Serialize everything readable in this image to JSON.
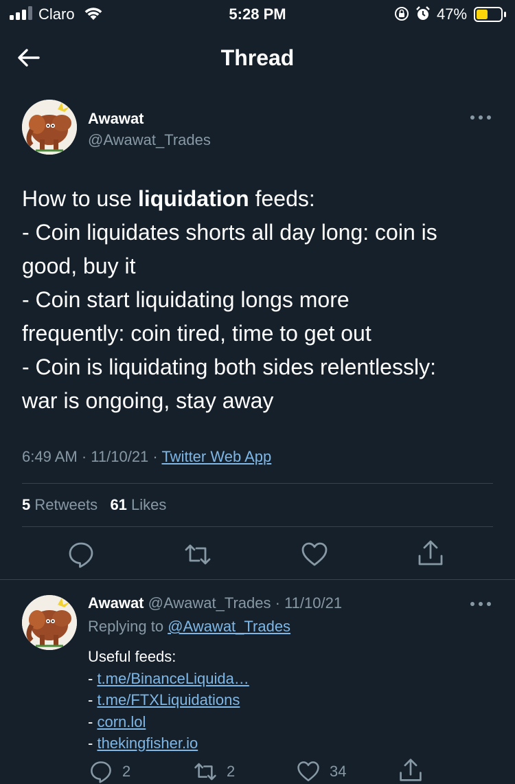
{
  "status_bar": {
    "carrier": "Claro",
    "time": "5:28 PM",
    "battery_percent": "47%",
    "battery_color": "#ffd60a"
  },
  "header": {
    "title": "Thread"
  },
  "main_tweet": {
    "display_name": "Awawat",
    "handle": "@Awawat_Trades",
    "text_lines": [
      {
        "before": "How to use ",
        "bold": "liquidation",
        "after": " feeds:"
      },
      {
        "text": "- Coin liquidates shorts all day long: coin is"
      },
      {
        "text": "good, buy it"
      },
      {
        "text": "- Coin start liquidating longs more"
      },
      {
        "text": "frequently: coin tired, time to get out"
      },
      {
        "text": "- Coin is liquidating both sides relentlessly:"
      },
      {
        "text": "war is ongoing, stay away"
      }
    ],
    "time": "6:49 AM",
    "date": "11/10/21",
    "source": "Twitter Web App",
    "retweets_count": "5",
    "retweets_label": "Retweets",
    "likes_count": "61",
    "likes_label": "Likes"
  },
  "reply_tweet": {
    "display_name": "Awawat",
    "handle": "@Awawat_Trades",
    "date": "11/10/21",
    "replying_to_label": "Replying to",
    "replying_to_handle": "@Awawat_Trades",
    "intro": "Useful feeds:",
    "links": [
      "t.me/BinanceLiquida…",
      "t.me/FTXLiquidations",
      "corn.lol",
      "thekingfisher.io"
    ],
    "reply_count": "2",
    "retweet_count": "2",
    "like_count": "34"
  },
  "colors": {
    "background": "#15202b",
    "secondary_text": "#8899a6",
    "link": "#7fb7e6",
    "divider": "#38444d"
  }
}
